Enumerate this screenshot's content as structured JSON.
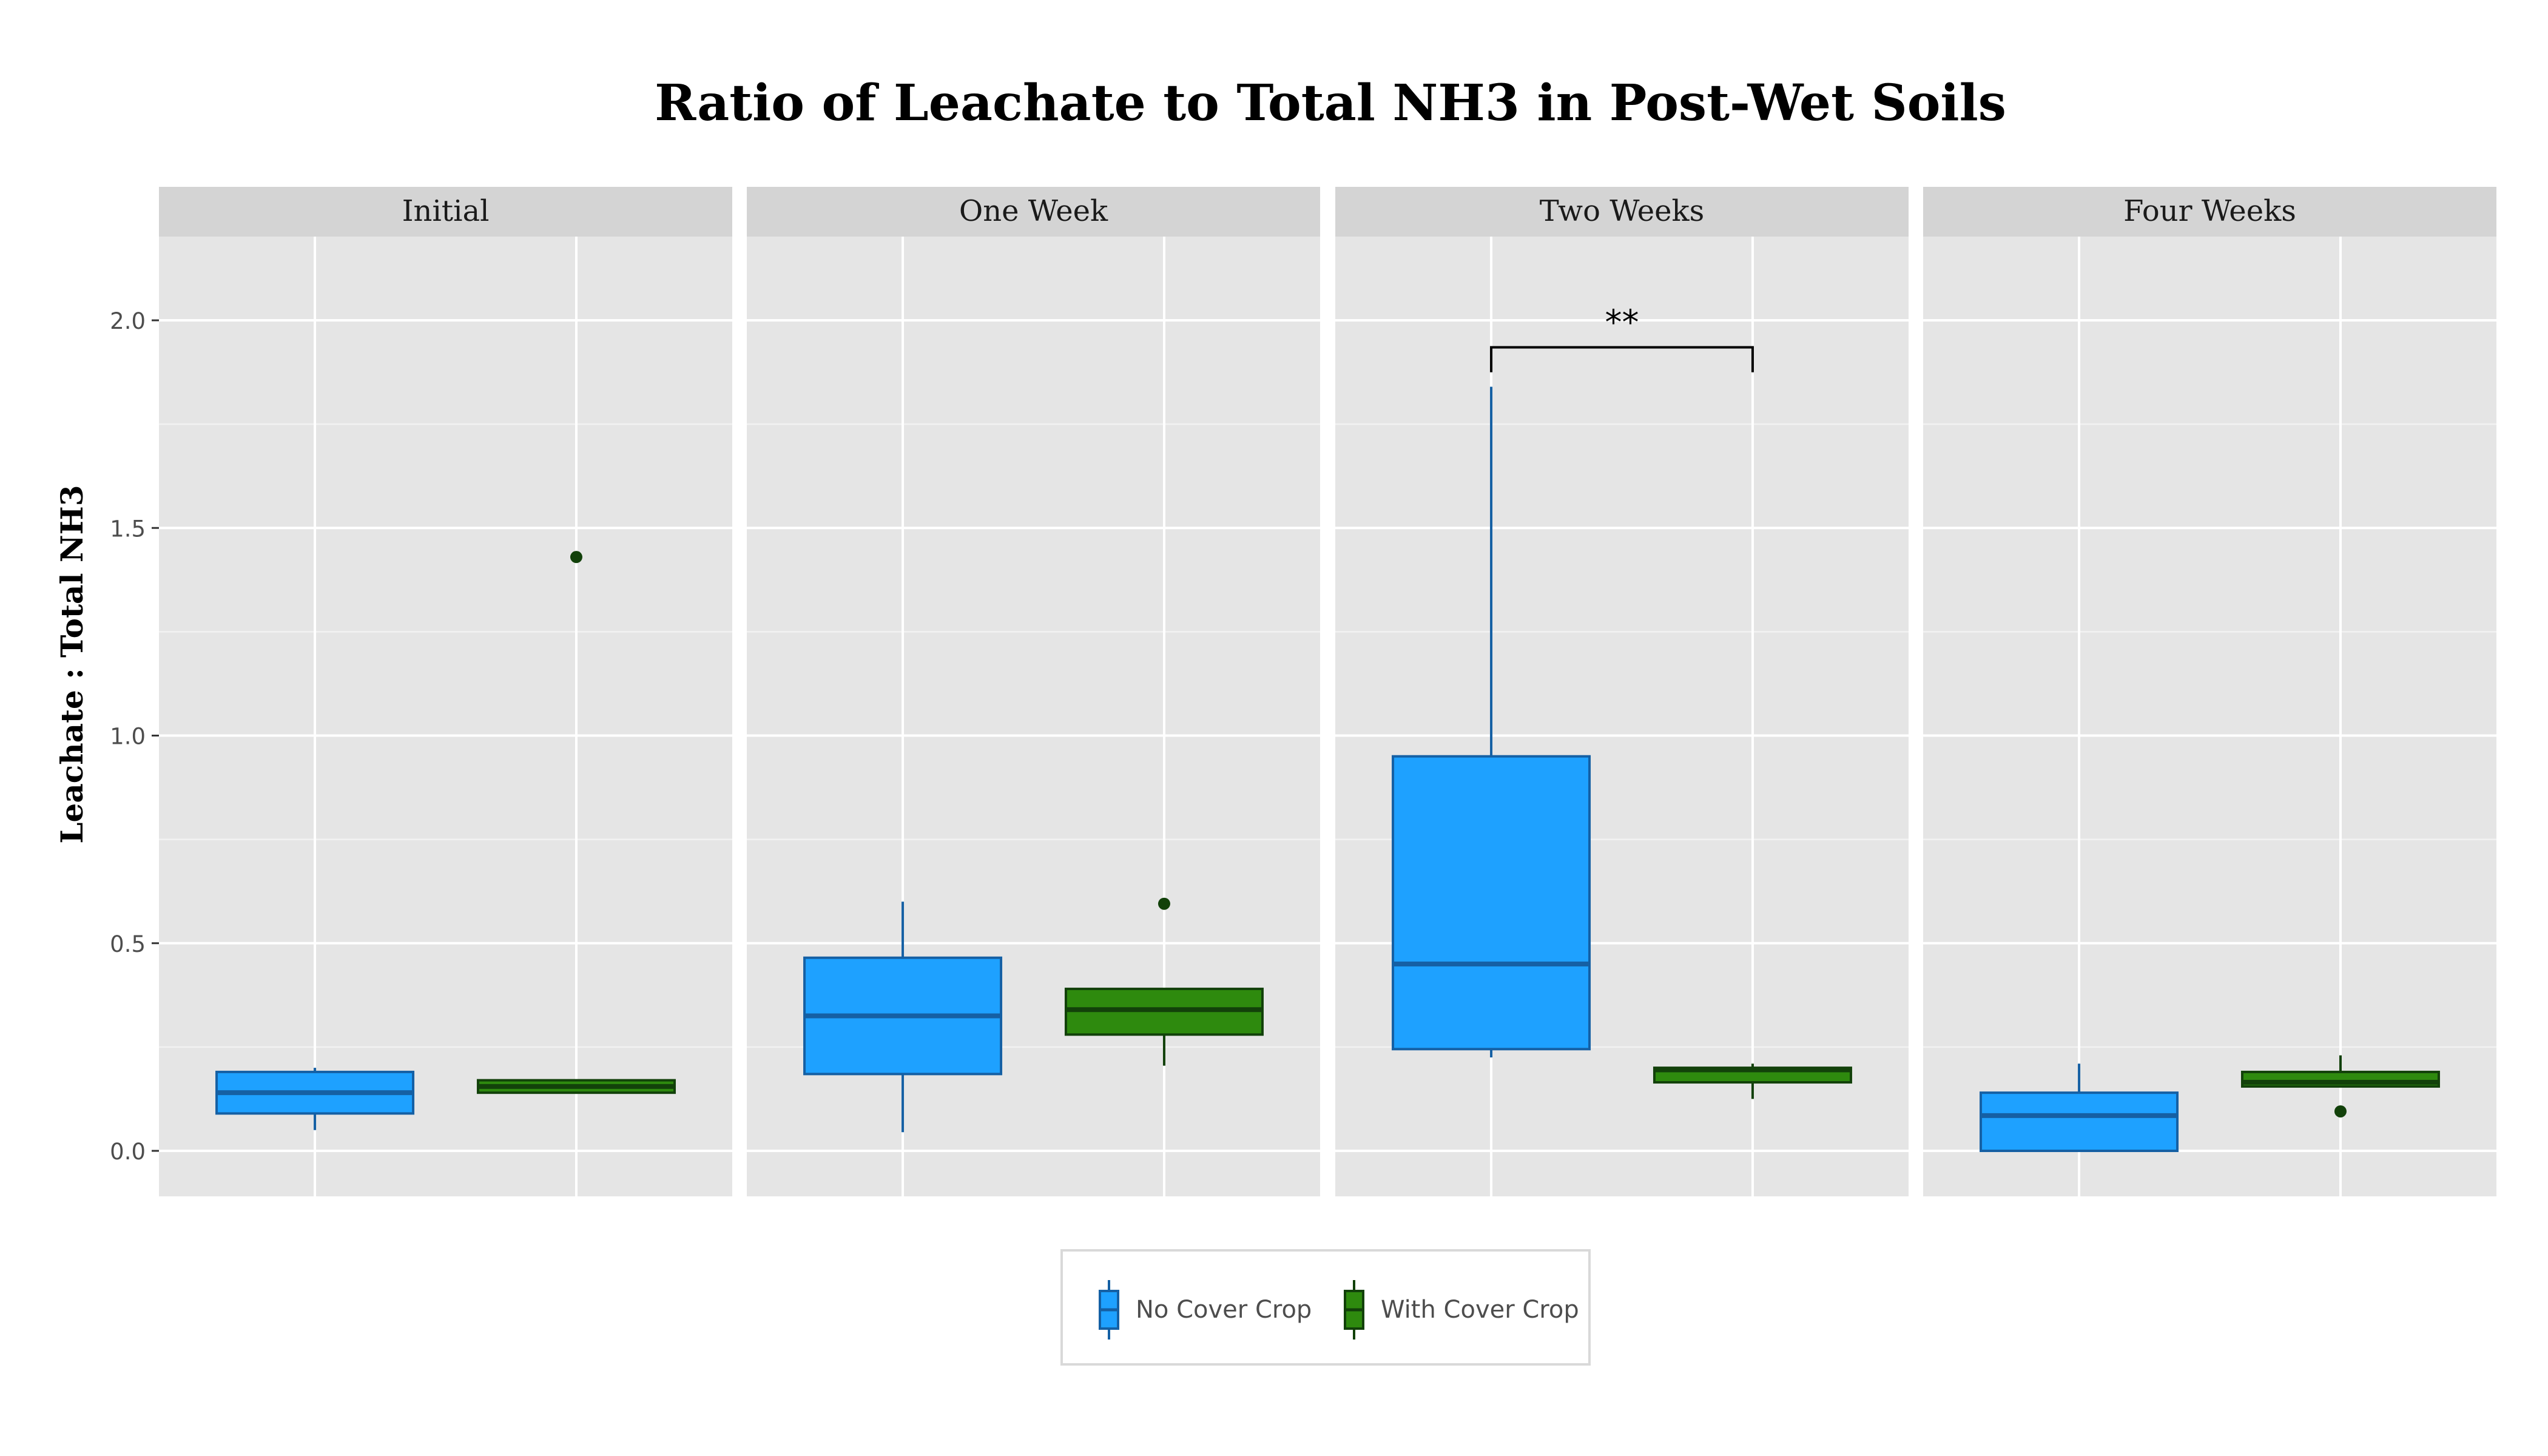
{
  "chart_data": {
    "type": "boxplot",
    "title": "Ratio of Leachate to Total NH3 in Post-Wet Soils",
    "xlabel": "",
    "ylabel": "Leachate : Total NH3",
    "ylim": [
      -0.1,
      2.22
    ],
    "yticks": [
      0.0,
      0.5,
      1.0,
      1.5,
      2.0
    ],
    "ytick_labels": [
      "0.0",
      "0.5",
      "1.0",
      "1.5",
      "2.0"
    ],
    "grid": true,
    "legend_position": "bottom",
    "legend": [
      {
        "key": "no_cover",
        "label": "No Cover Crop",
        "fill": "#1ea1ff",
        "stroke": "#1560a4"
      },
      {
        "key": "with_cover",
        "label": "With Cover Crop",
        "fill": "#2e8a0e",
        "stroke": "#12410a"
      }
    ],
    "panels": [
      {
        "name": "Initial",
        "boxes": [
          {
            "series": "no_cover",
            "whisker_low": 0.05,
            "q1": 0.09,
            "median": 0.14,
            "q3": 0.19,
            "whisker_high": 0.2,
            "outliers": []
          },
          {
            "series": "with_cover",
            "whisker_low": 0.14,
            "q1": 0.14,
            "median": 0.155,
            "q3": 0.17,
            "whisker_high": 0.17,
            "outliers": [
              1.43
            ]
          }
        ],
        "annotation": null
      },
      {
        "name": "One Week",
        "boxes": [
          {
            "series": "no_cover",
            "whisker_low": 0.045,
            "q1": 0.185,
            "median": 0.325,
            "q3": 0.465,
            "whisker_high": 0.6,
            "outliers": []
          },
          {
            "series": "with_cover",
            "whisker_low": 0.205,
            "q1": 0.28,
            "median": 0.34,
            "q3": 0.39,
            "whisker_high": 0.39,
            "outliers": [
              0.595
            ]
          }
        ],
        "annotation": null
      },
      {
        "name": "Two Weeks",
        "boxes": [
          {
            "series": "no_cover",
            "whisker_low": 0.225,
            "q1": 0.245,
            "median": 0.45,
            "q3": 0.95,
            "whisker_high": 1.84,
            "outliers": []
          },
          {
            "series": "with_cover",
            "whisker_low": 0.125,
            "q1": 0.165,
            "median": 0.195,
            "q3": 0.2,
            "whisker_high": 0.21,
            "outliers": []
          }
        ],
        "annotation": {
          "label": "**",
          "y": 1.935,
          "tick_bottom": 1.875
        }
      },
      {
        "name": "Four Weeks",
        "boxes": [
          {
            "series": "no_cover",
            "whisker_low": 0.0,
            "q1": 0.0,
            "median": 0.085,
            "q3": 0.14,
            "whisker_high": 0.21,
            "outliers": []
          },
          {
            "series": "with_cover",
            "whisker_low": 0.155,
            "q1": 0.155,
            "median": 0.165,
            "q3": 0.19,
            "whisker_high": 0.23,
            "outliers": [
              0.095
            ]
          }
        ],
        "annotation": null
      }
    ]
  }
}
